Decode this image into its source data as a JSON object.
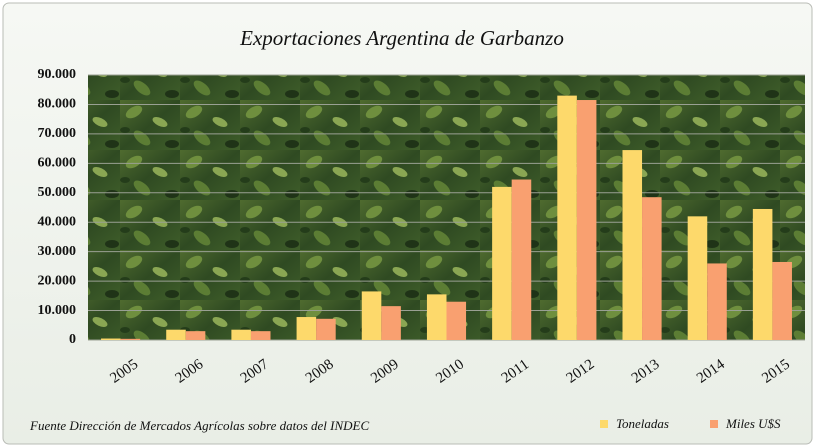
{
  "chart_data": {
    "type": "bar",
    "title": "Exportaciones Argentina de Garbanzo",
    "footnote": "Fuente Dirección de Mercados Agrícolas sobre datos del INDEC",
    "categories": [
      "2005",
      "2006",
      "2007",
      "2008",
      "2009",
      "2010",
      "2011",
      "2012",
      "2013",
      "2014",
      "2015"
    ],
    "series": [
      {
        "name": "Toneladas",
        "color": "#fdd96b",
        "values": [
          500,
          3500,
          3500,
          7800,
          16500,
          15500,
          52000,
          83000,
          64500,
          42000,
          44500
        ]
      },
      {
        "name": "Miles U$S",
        "color": "#f9a070",
        "values": [
          400,
          3000,
          3000,
          7200,
          11500,
          13000,
          54500,
          81500,
          48500,
          26000,
          26500
        ]
      }
    ],
    "ylim": [
      0,
      90000
    ],
    "yticks": [
      0,
      {
        "value": 10000,
        "label": "10.000"
      },
      {
        "value": 20000,
        "label": "20.000"
      },
      {
        "value": 30000,
        "label": "30.000"
      },
      {
        "value": 40000,
        "label": "40.000"
      },
      {
        "value": 50000,
        "label": "50.000"
      },
      {
        "value": 60000,
        "label": "60.000"
      },
      {
        "value": 70000,
        "label": "70.000"
      },
      {
        "value": 80000,
        "label": "80.000"
      },
      {
        "value": 90000,
        "label": "90.000"
      }
    ],
    "grid": true,
    "legend": "bottom-right"
  }
}
